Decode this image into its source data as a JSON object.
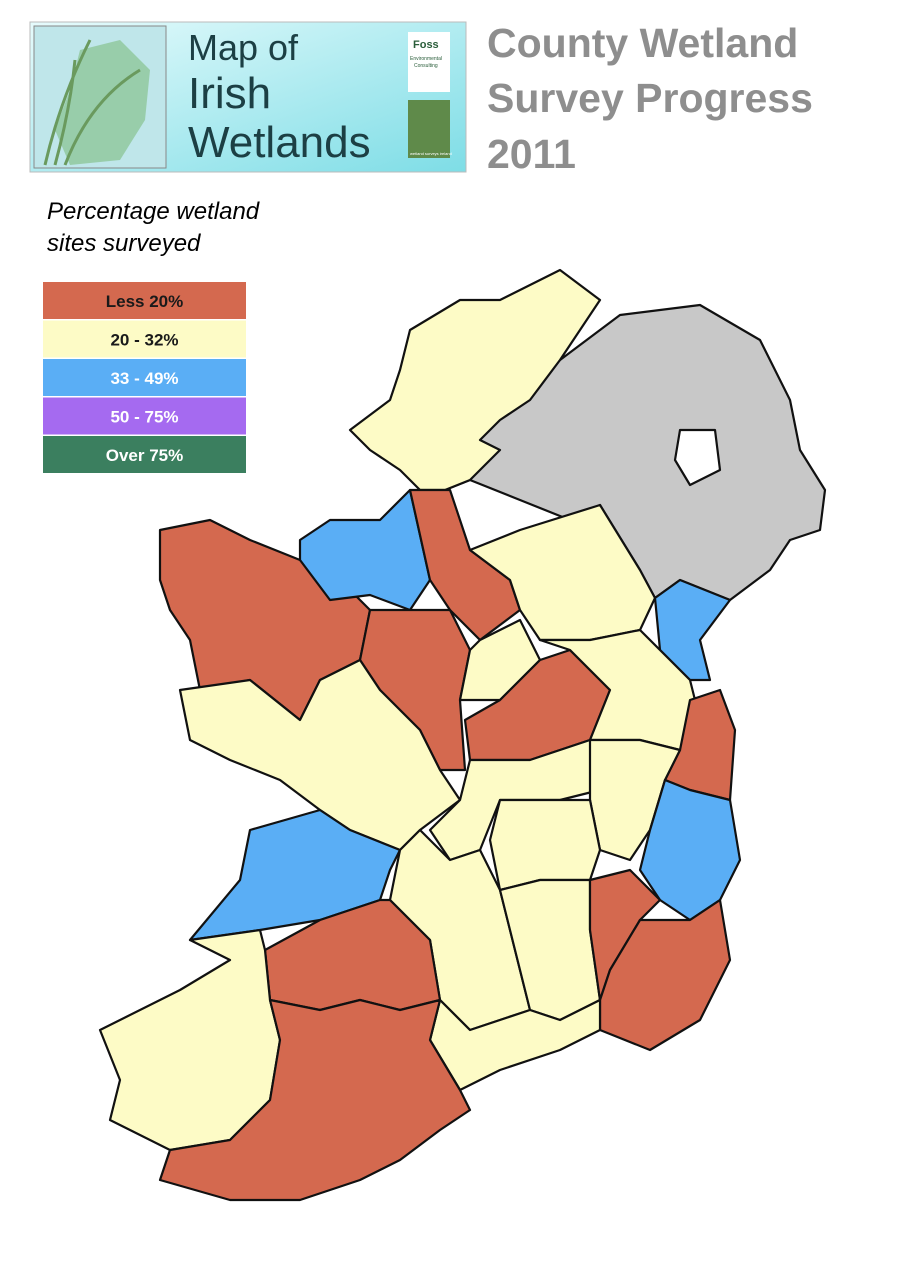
{
  "header": {
    "logo_lines": [
      "Map of",
      "Irish",
      "Wetlands"
    ],
    "sponsor": "Foss",
    "sponsor_sub": [
      "Environmental",
      "Consulting"
    ],
    "partner": "wetland surveys ireland"
  },
  "title_lines": [
    "County Wetland",
    "Survey Progress",
    "2011"
  ],
  "legend": {
    "title_lines": [
      "Percentage wetland",
      "sites surveyed"
    ],
    "items": [
      {
        "label": "Less 20%",
        "color": "#d4694f",
        "text_color": "#1a1a1a"
      },
      {
        "label": "20 - 32%",
        "color": "#fdfbc6",
        "text_color": "#1a1a1a"
      },
      {
        "label": "33 - 49%",
        "color": "#5aaef5",
        "text_color": "#ffffff"
      },
      {
        "label": "50 - 75%",
        "color": "#a56af0",
        "text_color": "#ffffff"
      },
      {
        "label": "Over 75%",
        "color": "#3b7f5f",
        "text_color": "#ffffff"
      }
    ]
  },
  "other_region_color": "#c8c8c8"
}
